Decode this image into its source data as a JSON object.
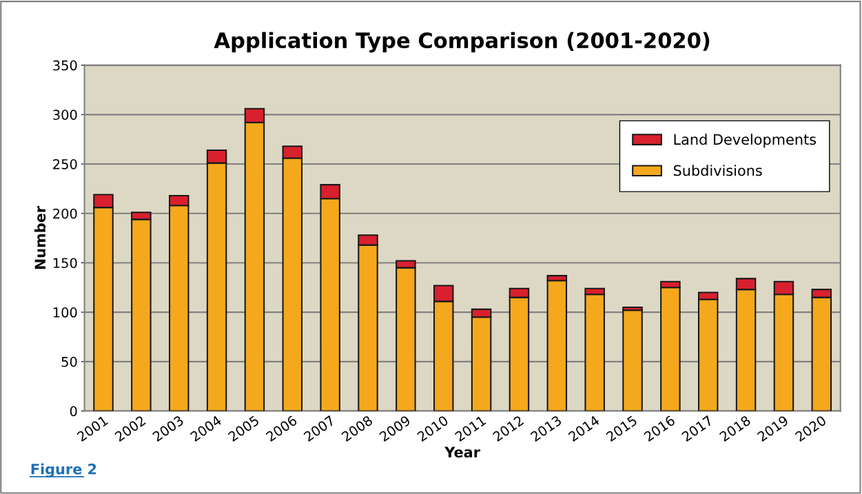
{
  "chart_data": {
    "type": "bar",
    "title": "Application Type Comparison (2001-2020)",
    "xlabel": "Year",
    "ylabel": "Number",
    "categories": [
      "2001",
      "2002",
      "2003",
      "2004",
      "2005",
      "2006",
      "2007",
      "2008",
      "2009",
      "2010",
      "2011",
      "2012",
      "2013",
      "2014",
      "2015",
      "2016",
      "2017",
      "2018",
      "2019",
      "2020"
    ],
    "stacked": true,
    "series": [
      {
        "name": "Subdivisions",
        "color": "#f5a81c",
        "values": [
          206,
          194,
          208,
          251,
          292,
          256,
          215,
          168,
          145,
          111,
          95,
          115,
          132,
          118,
          102,
          125,
          113,
          123,
          118,
          115
        ]
      },
      {
        "name": "Land Developments",
        "color": "#d9202e",
        "values": [
          13,
          7,
          10,
          13,
          14,
          12,
          14,
          10,
          7,
          16,
          8,
          9,
          5,
          6,
          3,
          6,
          7,
          11,
          13,
          8
        ]
      }
    ],
    "ylim": [
      0,
      350
    ],
    "yticks": [
      0,
      50,
      100,
      150,
      200,
      250,
      300,
      350
    ],
    "grid": "y",
    "legend": "top right",
    "annotations": [
      "Figure 2"
    ]
  }
}
